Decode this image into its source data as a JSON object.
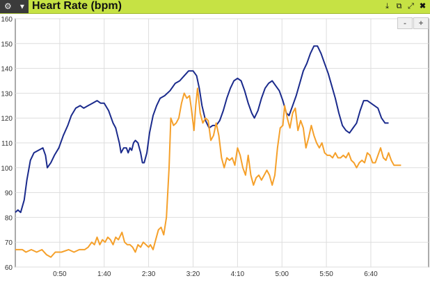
{
  "header": {
    "menu_icon": "gear-icon",
    "dropdown_icon": "chevron-down-icon",
    "title": "Heart Rate (bpm)",
    "icons": [
      "download-icon",
      "popout-icon",
      "fullscreen-icon",
      "close-icon"
    ],
    "accent": "#c6e244"
  },
  "zoom": {
    "minus_label": "-",
    "plus_label": "+"
  },
  "chart_data": {
    "type": "line",
    "title": "Heart Rate (bpm)",
    "xlabel": "",
    "ylabel": "",
    "x_unit": "elapsed time (m:ss)",
    "xlim": [
      "0:00",
      "7:45"
    ],
    "ylim": [
      60,
      160
    ],
    "yticks": [
      60,
      70,
      80,
      90,
      100,
      110,
      120,
      130,
      140,
      150,
      160
    ],
    "xtick_labels": [
      "0:50",
      "1:40",
      "2:30",
      "3:20",
      "4:10",
      "5:00",
      "5:50",
      "6:40"
    ],
    "grid": true,
    "legend": "none",
    "series": [
      {
        "color": "#1a2a8c",
        "points": [
          [
            "0:00",
            82
          ],
          [
            "0:03",
            83
          ],
          [
            "0:06",
            82
          ],
          [
            "0:10",
            87
          ],
          [
            "0:13",
            95
          ],
          [
            "0:17",
            103
          ],
          [
            "0:21",
            106
          ],
          [
            "0:26",
            107
          ],
          [
            "0:31",
            108
          ],
          [
            "0:34",
            105
          ],
          [
            "0:36",
            100
          ],
          [
            "0:40",
            102
          ],
          [
            "0:44",
            105
          ],
          [
            "0:49",
            108
          ],
          [
            "0:54",
            113
          ],
          [
            "0:59",
            117
          ],
          [
            "1:03",
            121
          ],
          [
            "1:08",
            124
          ],
          [
            "1:13",
            125
          ],
          [
            "1:17",
            124
          ],
          [
            "1:22",
            125
          ],
          [
            "1:27",
            126
          ],
          [
            "1:32",
            127
          ],
          [
            "1:36",
            126
          ],
          [
            "1:40",
            126
          ],
          [
            "1:45",
            123
          ],
          [
            "1:50",
            118
          ],
          [
            "1:53",
            116
          ],
          [
            "1:55",
            113
          ],
          [
            "1:57",
            110
          ],
          [
            "1:59",
            106
          ],
          [
            "2:02",
            108
          ],
          [
            "2:05",
            108
          ],
          [
            "2:07",
            106
          ],
          [
            "2:09",
            108
          ],
          [
            "2:11",
            107
          ],
          [
            "2:13",
            110
          ],
          [
            "2:15",
            111
          ],
          [
            "2:18",
            110
          ],
          [
            "2:21",
            106
          ],
          [
            "2:23",
            102
          ],
          [
            "2:25",
            102
          ],
          [
            "2:28",
            106
          ],
          [
            "2:31",
            114
          ],
          [
            "2:35",
            121
          ],
          [
            "2:39",
            125
          ],
          [
            "2:43",
            128
          ],
          [
            "2:48",
            129
          ],
          [
            "2:54",
            131
          ],
          [
            "3:00",
            134
          ],
          [
            "3:05",
            135
          ],
          [
            "3:10",
            137
          ],
          [
            "3:15",
            139
          ],
          [
            "3:20",
            139
          ],
          [
            "3:24",
            137
          ],
          [
            "3:27",
            132
          ],
          [
            "3:30",
            125
          ],
          [
            "3:34",
            119
          ],
          [
            "3:38",
            116
          ],
          [
            "3:42",
            117
          ],
          [
            "3:46",
            117
          ],
          [
            "3:50",
            119
          ],
          [
            "3:54",
            123
          ],
          [
            "3:58",
            128
          ],
          [
            "4:02",
            132
          ],
          [
            "4:06",
            135
          ],
          [
            "4:10",
            136
          ],
          [
            "4:14",
            135
          ],
          [
            "4:18",
            131
          ],
          [
            "4:22",
            126
          ],
          [
            "4:26",
            122
          ],
          [
            "4:29",
            120
          ],
          [
            "4:33",
            123
          ],
          [
            "4:37",
            128
          ],
          [
            "4:41",
            132
          ],
          [
            "4:45",
            134
          ],
          [
            "4:49",
            135
          ],
          [
            "4:53",
            133
          ],
          [
            "4:57",
            131
          ],
          [
            "5:01",
            127
          ],
          [
            "5:05",
            122
          ],
          [
            "5:08",
            121
          ],
          [
            "5:12",
            125
          ],
          [
            "5:16",
            129
          ],
          [
            "5:20",
            134
          ],
          [
            "5:24",
            139
          ],
          [
            "5:28",
            142
          ],
          [
            "5:32",
            146
          ],
          [
            "5:36",
            149
          ],
          [
            "5:40",
            149
          ],
          [
            "5:44",
            146
          ],
          [
            "5:48",
            142
          ],
          [
            "5:52",
            138
          ],
          [
            "5:56",
            133
          ],
          [
            "6:00",
            128
          ],
          [
            "6:04",
            122
          ],
          [
            "6:08",
            117
          ],
          [
            "6:12",
            115
          ],
          [
            "6:16",
            114
          ],
          [
            "6:20",
            116
          ],
          [
            "6:24",
            118
          ],
          [
            "6:28",
            123
          ],
          [
            "6:32",
            127
          ],
          [
            "6:36",
            127
          ],
          [
            "6:40",
            126
          ],
          [
            "6:44",
            125
          ],
          [
            "6:48",
            124
          ],
          [
            "6:52",
            120
          ],
          [
            "6:56",
            118
          ],
          [
            "7:00",
            118
          ]
        ]
      },
      {
        "color": "#f5a02a",
        "points": [
          [
            "0:00",
            67
          ],
          [
            "0:08",
            67
          ],
          [
            "0:12",
            66
          ],
          [
            "0:18",
            67
          ],
          [
            "0:24",
            66
          ],
          [
            "0:30",
            67
          ],
          [
            "0:35",
            65
          ],
          [
            "0:40",
            64
          ],
          [
            "0:45",
            66
          ],
          [
            "0:52",
            66
          ],
          [
            "1:00",
            67
          ],
          [
            "1:06",
            66
          ],
          [
            "1:12",
            67
          ],
          [
            "1:18",
            67
          ],
          [
            "1:22",
            68
          ],
          [
            "1:26",
            70
          ],
          [
            "1:29",
            69
          ],
          [
            "1:32",
            72
          ],
          [
            "1:35",
            69
          ],
          [
            "1:38",
            71
          ],
          [
            "1:41",
            70
          ],
          [
            "1:44",
            72
          ],
          [
            "1:47",
            71
          ],
          [
            "1:50",
            69
          ],
          [
            "1:53",
            72
          ],
          [
            "1:56",
            71
          ],
          [
            "2:00",
            74
          ],
          [
            "2:03",
            70
          ],
          [
            "2:06",
            69
          ],
          [
            "2:09",
            69
          ],
          [
            "2:12",
            68
          ],
          [
            "2:15",
            66
          ],
          [
            "2:18",
            69
          ],
          [
            "2:21",
            68
          ],
          [
            "2:24",
            70
          ],
          [
            "2:27",
            69
          ],
          [
            "2:30",
            68
          ],
          [
            "2:32",
            69
          ],
          [
            "2:35",
            67
          ],
          [
            "2:38",
            71
          ],
          [
            "2:41",
            75
          ],
          [
            "2:44",
            76
          ],
          [
            "2:47",
            73
          ],
          [
            "2:50",
            80
          ],
          [
            "2:53",
            100
          ],
          [
            "2:55",
            120
          ],
          [
            "2:58",
            117
          ],
          [
            "3:01",
            118
          ],
          [
            "3:04",
            120
          ],
          [
            "3:07",
            126
          ],
          [
            "3:10",
            130
          ],
          [
            "3:13",
            128
          ],
          [
            "3:16",
            129
          ],
          [
            "3:18",
            124
          ],
          [
            "3:21",
            115
          ],
          [
            "3:23",
            125
          ],
          [
            "3:25",
            132
          ],
          [
            "3:28",
            122
          ],
          [
            "3:31",
            118
          ],
          [
            "3:34",
            120
          ],
          [
            "3:37",
            119
          ],
          [
            "3:40",
            111
          ],
          [
            "3:43",
            113
          ],
          [
            "3:46",
            118
          ],
          [
            "3:49",
            113
          ],
          [
            "3:52",
            104
          ],
          [
            "3:55",
            100
          ],
          [
            "3:58",
            104
          ],
          [
            "4:01",
            103
          ],
          [
            "4:04",
            104
          ],
          [
            "4:07",
            101
          ],
          [
            "4:10",
            108
          ],
          [
            "4:13",
            105
          ],
          [
            "4:16",
            100
          ],
          [
            "4:19",
            97
          ],
          [
            "4:22",
            105
          ],
          [
            "4:25",
            97
          ],
          [
            "4:28",
            93
          ],
          [
            "4:31",
            96
          ],
          [
            "4:34",
            97
          ],
          [
            "4:37",
            95
          ],
          [
            "4:40",
            97
          ],
          [
            "4:43",
            99
          ],
          [
            "4:46",
            97
          ],
          [
            "4:49",
            93
          ],
          [
            "4:52",
            97
          ],
          [
            "4:55",
            108
          ],
          [
            "4:58",
            116
          ],
          [
            "5:01",
            117
          ],
          [
            "5:03",
            125
          ],
          [
            "5:06",
            120
          ],
          [
            "5:09",
            116
          ],
          [
            "5:12",
            122
          ],
          [
            "5:15",
            124
          ],
          [
            "5:18",
            115
          ],
          [
            "5:21",
            119
          ],
          [
            "5:24",
            116
          ],
          [
            "5:27",
            108
          ],
          [
            "5:30",
            112
          ],
          [
            "5:33",
            117
          ],
          [
            "5:36",
            113
          ],
          [
            "5:39",
            110
          ],
          [
            "5:42",
            108
          ],
          [
            "5:45",
            110
          ],
          [
            "5:48",
            106
          ],
          [
            "5:51",
            105
          ],
          [
            "5:54",
            105
          ],
          [
            "5:57",
            104
          ],
          [
            "6:00",
            106
          ],
          [
            "6:03",
            104
          ],
          [
            "6:06",
            104
          ],
          [
            "6:09",
            105
          ],
          [
            "6:12",
            104
          ],
          [
            "6:15",
            106
          ],
          [
            "6:18",
            103
          ],
          [
            "6:21",
            102
          ],
          [
            "6:24",
            100
          ],
          [
            "6:27",
            102
          ],
          [
            "6:30",
            103
          ],
          [
            "6:33",
            102
          ],
          [
            "6:36",
            106
          ],
          [
            "6:39",
            105
          ],
          [
            "6:42",
            102
          ],
          [
            "6:45",
            102
          ],
          [
            "6:48",
            105
          ],
          [
            "6:51",
            108
          ],
          [
            "6:54",
            104
          ],
          [
            "6:57",
            103
          ],
          [
            "7:00",
            106
          ],
          [
            "7:03",
            103
          ],
          [
            "7:06",
            101
          ],
          [
            "7:09",
            101
          ],
          [
            "7:14",
            101
          ]
        ]
      }
    ]
  }
}
